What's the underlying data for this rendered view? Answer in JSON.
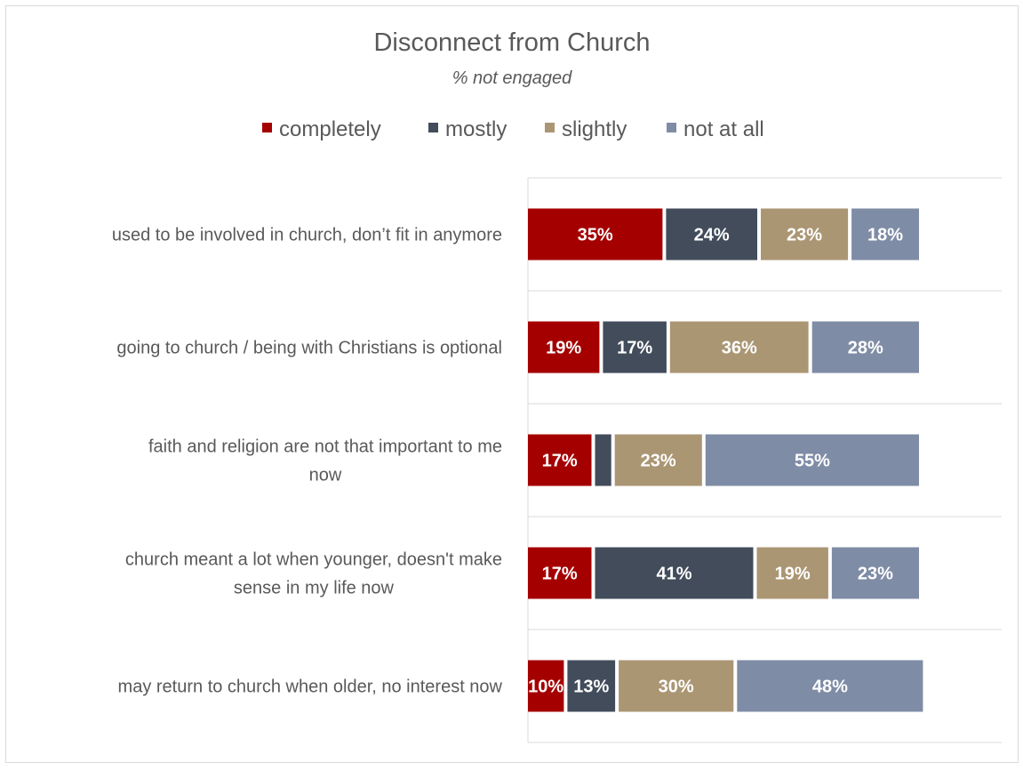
{
  "chart_data": {
    "type": "bar",
    "orientation": "horizontal",
    "stacked": true,
    "title": "Disconnect from Church",
    "subtitle": "% not engaged",
    "legend_position": "top",
    "grid": true,
    "xlim": [
      0,
      100
    ],
    "categories": [
      "used to be involved in church, don’t fit in anymore",
      "going to church / being with Christians is optional",
      "faith and religion are not that important to me now",
      "church meant a lot when younger, doesn't make sense in my life now",
      "may return to church when older, no interest now"
    ],
    "category_lines": [
      [
        "used to be involved in church, don’t fit in anymore"
      ],
      [
        "going to church / being with Christians is optional"
      ],
      [
        "faith and religion are not that important to me",
        "now"
      ],
      [
        "church meant a lot when younger, doesn't make",
        "sense in my life now"
      ],
      [
        "may return to church when older, no interest now"
      ]
    ],
    "series": [
      {
        "name": "completely",
        "color": "#a50000",
        "values": [
          35,
          19,
          17,
          17,
          10
        ],
        "labels": [
          "35%",
          "19%",
          "17%",
          "17%",
          "10%"
        ]
      },
      {
        "name": "mostly",
        "color": "#424c5b",
        "values": [
          24,
          17,
          5,
          41,
          13
        ],
        "labels": [
          "24%",
          "17%",
          "",
          "41%",
          "13%"
        ]
      },
      {
        "name": "slightly",
        "color": "#ab9674",
        "values": [
          23,
          36,
          23,
          19,
          30
        ],
        "labels": [
          "23%",
          "36%",
          "23%",
          "19%",
          "30%"
        ]
      },
      {
        "name": "not at all",
        "color": "#7f8ca6",
        "values": [
          18,
          28,
          55,
          23,
          48
        ],
        "labels": [
          "18%",
          "28%",
          "55%",
          "23%",
          "48%"
        ]
      }
    ]
  }
}
